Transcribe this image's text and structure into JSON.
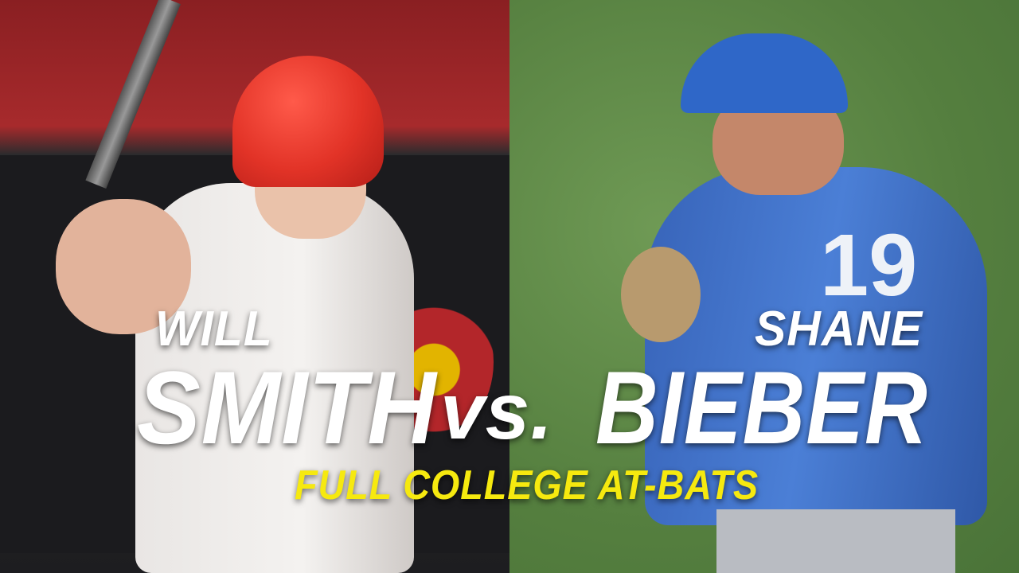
{
  "left_player": {
    "first_name": "WILL",
    "last_name": "SMITH"
  },
  "versus": "vs.",
  "right_player": {
    "first_name": "SHANE",
    "last_name": "BIEBER",
    "jersey_number": "19"
  },
  "subtitle": "FULL COLLEGE AT-BATS",
  "colors": {
    "subtitle": "#f6e90f",
    "name_text": "#ffffff",
    "helmet": "#e8332b",
    "jersey_blue": "#3f6fc7",
    "grass": "#5b8644"
  }
}
